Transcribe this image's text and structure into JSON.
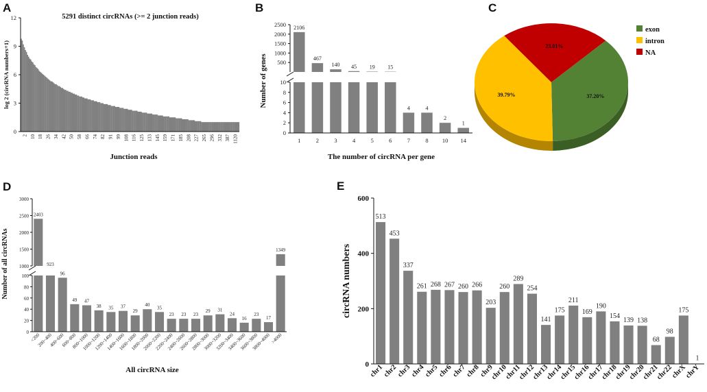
{
  "colors": {
    "bar": "#808080",
    "exon": "#548235",
    "intron": "#FFC000",
    "na": "#C00000"
  },
  "panels": {
    "A": "A",
    "B": "B",
    "C": "C",
    "D": "D",
    "E": "E"
  },
  "chart_data": [
    {
      "panel": "A",
      "type": "bar",
      "title": "5291 distinct circRNAs (>= 2 junction reads)",
      "xlabel": "Junction reads",
      "ylabel": "log 2 (circRNA numbers+1)",
      "ylim": [
        0,
        12
      ],
      "yticks": [
        0,
        3,
        6,
        9,
        12
      ],
      "xtick_labels": [
        "2",
        "10",
        "18",
        "26",
        "34",
        "42",
        "50",
        "58",
        "66",
        "74",
        "82",
        "91",
        "99",
        "108",
        "116",
        "125",
        "133",
        "145",
        "159",
        "171",
        "185",
        "208",
        "227",
        "265",
        "296",
        "332",
        "387",
        "1120"
      ],
      "values": [
        9.8,
        9.6,
        9.2,
        8.9,
        8.6,
        8.4,
        8.1,
        7.9,
        7.7,
        7.6,
        7.4,
        7.3,
        7.1,
        7.0,
        6.8,
        6.7,
        6.6,
        6.4,
        6.3,
        6.2,
        6.1,
        6.0,
        5.9,
        5.8,
        5.7,
        5.6,
        5.5,
        5.4,
        5.3,
        5.3,
        5.2,
        5.1,
        5.0,
        5.0,
        4.9,
        4.8,
        4.8,
        4.7,
        4.6,
        4.6,
        4.5,
        4.4,
        4.4,
        4.3,
        4.3,
        4.2,
        4.2,
        4.1,
        4.1,
        4.0,
        4.0,
        3.9,
        3.9,
        3.8,
        3.8,
        3.7,
        3.7,
        3.7,
        3.6,
        3.6,
        3.5,
        3.5,
        3.5,
        3.4,
        3.4,
        3.4,
        3.3,
        3.3,
        3.3,
        3.2,
        3.2,
        3.2,
        3.1,
        3.1,
        3.1,
        3.0,
        3.0,
        3.0,
        2.9,
        2.9,
        2.9,
        2.9,
        2.8,
        2.8,
        2.8,
        2.7,
        2.7,
        2.7,
        2.7,
        2.6,
        2.6,
        2.6,
        2.6,
        2.5,
        2.5,
        2.5,
        2.5,
        2.4,
        2.4,
        2.4,
        2.4,
        2.3,
        2.3,
        2.3,
        2.3,
        2.2,
        2.2,
        2.2,
        2.2,
        2.2,
        2.1,
        2.1,
        2.1,
        2.1,
        2.0,
        2.0,
        2.0,
        2.0,
        2.0,
        1.9,
        1.9,
        1.9,
        1.9,
        1.9,
        1.8,
        1.8,
        1.8,
        1.8,
        1.8,
        1.7,
        1.7,
        1.7,
        1.7,
        1.7,
        1.6,
        1.6,
        1.6,
        1.6,
        1.6,
        1.6,
        1.5,
        1.5,
        1.5,
        1.5,
        1.5,
        1.5,
        1.4,
        1.4,
        1.4,
        1.4,
        1.4,
        1.4,
        1.3,
        1.3,
        1.3,
        1.3,
        1.3,
        1.3,
        1.2,
        1.2,
        1.2,
        1.2,
        1.2,
        1.2,
        1.1,
        1.1,
        1.1,
        1.1,
        1.1,
        1.1,
        1.0,
        1.0,
        1.0,
        1.0,
        1.0,
        1.0,
        1.0,
        1.0,
        1.0,
        1.0,
        1.0,
        1.0,
        1.0,
        1.0,
        1.0,
        1.0,
        1.0,
        1.0,
        1.0,
        1.0,
        1.0,
        1.0,
        1.0,
        1.0,
        1.0,
        1.0,
        1.0,
        1.0,
        1.0,
        1.0,
        1.0,
        1.0,
        1.0,
        1.0,
        1.0,
        1.0
      ]
    },
    {
      "panel": "B",
      "type": "bar",
      "xlabel": "The number of circRNA per gene",
      "ylabel": "Number of genes",
      "categories": [
        "1",
        "2",
        "3",
        "4",
        "5",
        "6",
        "7",
        "8",
        "10",
        "14"
      ],
      "values": [
        2106,
        467,
        140,
        45,
        19,
        15,
        4,
        4,
        2,
        1
      ],
      "axis_break": {
        "lower": [
          0,
          10
        ],
        "upper": [
          0,
          2500
        ]
      },
      "lower_ticks": [
        0,
        2,
        4,
        6,
        8,
        10
      ],
      "upper_ticks": [
        500,
        1000,
        1500,
        2000,
        2500
      ]
    },
    {
      "panel": "C",
      "type": "pie",
      "slices": [
        {
          "name": "exon",
          "value": 37.2,
          "label": "37.20%"
        },
        {
          "name": "intron",
          "value": 39.79,
          "label": "39.79%"
        },
        {
          "name": "NA",
          "value": 23.01,
          "label": "23.01%"
        }
      ],
      "legend": [
        "exon",
        "intron",
        "NA"
      ]
    },
    {
      "panel": "D",
      "type": "bar",
      "xlabel": "All circRNA size",
      "ylabel": "Number of all circRNAs",
      "categories": [
        "<200",
        "200~400",
        "400~600",
        "600~800",
        "800~1000",
        "1000~1200",
        "1200~1400",
        "1400~1600",
        "1600~1800",
        "1800~2000",
        "2000~2200",
        "2200~2400",
        "2400~2600",
        "2600~2800",
        "2800~3000",
        "3000~3200",
        "3200~3400",
        "3400~3600",
        "3600~3800",
        "3800~4000",
        ">4000"
      ],
      "values": [
        2403,
        923,
        96,
        49,
        47,
        38,
        35,
        37,
        29,
        40,
        35,
        23,
        23,
        23,
        29,
        31,
        24,
        16,
        23,
        17,
        1349
      ],
      "axis_break": {
        "lower": [
          0,
          100
        ],
        "upper": [
          1000,
          3000
        ]
      },
      "lower_ticks": [
        0,
        20,
        40,
        60,
        80,
        100
      ],
      "upper_ticks": [
        1000,
        1500,
        2000,
        2500,
        3000
      ]
    },
    {
      "panel": "E",
      "type": "bar",
      "xlabel": "",
      "ylabel": "circRNA numbers",
      "categories": [
        "chr1",
        "chr2",
        "chr3",
        "chr4",
        "chr5",
        "chr6",
        "chr7",
        "chr8",
        "chr9",
        "chr10",
        "chr11",
        "chr12",
        "chr13",
        "chr14",
        "chr15",
        "chr16",
        "chr17",
        "chr18",
        "chr19",
        "chr20",
        "chr21",
        "chr22",
        "chrX",
        "chrY"
      ],
      "values": [
        513,
        453,
        337,
        261,
        268,
        267,
        260,
        266,
        203,
        260,
        289,
        254,
        141,
        175,
        211,
        169,
        190,
        154,
        139,
        138,
        68,
        98,
        175,
        1
      ],
      "ylim": [
        0,
        600
      ],
      "yticks": [
        0,
        200,
        400,
        600
      ]
    }
  ]
}
